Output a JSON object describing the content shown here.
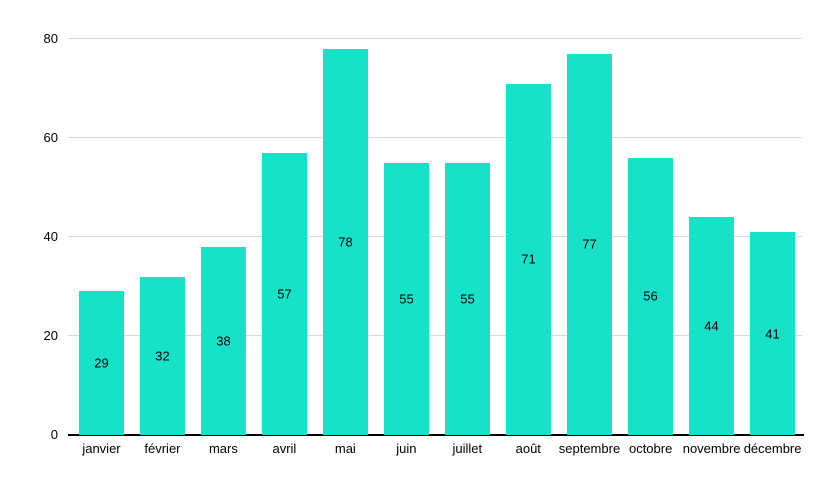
{
  "chart_data": {
    "type": "bar",
    "title": "",
    "categories": [
      "janvier",
      "février",
      "mars",
      "avril",
      "mai",
      "juin",
      "juillet",
      "août",
      "septembre",
      "octobre",
      "novembre",
      "décembre"
    ],
    "values": [
      29,
      32,
      38,
      57,
      78,
      55,
      55,
      71,
      77,
      56,
      44,
      41
    ],
    "xlabel": "",
    "ylabel": "",
    "ylim": [
      0,
      80
    ],
    "yticks": [
      0,
      20,
      40,
      60,
      80
    ],
    "grid": true,
    "legend_position": "none",
    "value_label_position": "inside-center",
    "colors": {
      "bar": "#17E2C9",
      "gridline": "#D9D9D9",
      "axis_line": "#000000",
      "text": "#000000",
      "background": "#FFFFFF"
    }
  }
}
